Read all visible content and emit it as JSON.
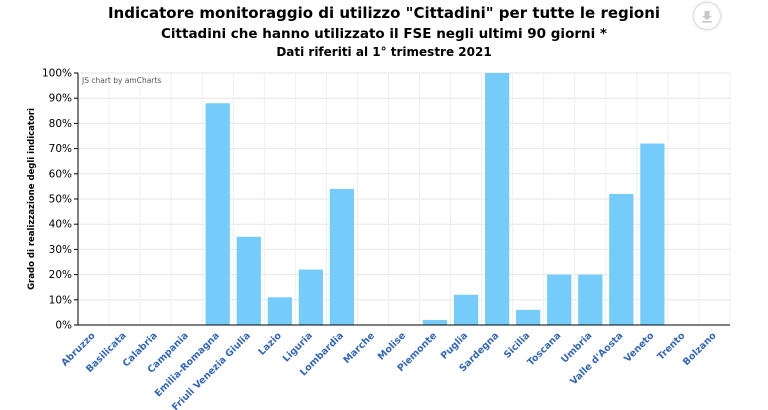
{
  "header": {
    "title": "Indicatore monitoraggio di utilizzo \"Cittadini\" per tutte le regioni",
    "subtitle": "Cittadini che hanno utilizzato il FSE negli ultimi 90 giorni *",
    "note": "Dati riferiti al 1° trimestre 2021"
  },
  "credit": "JS chart by amCharts",
  "download_icon": "download-icon",
  "chart_data": {
    "type": "bar",
    "ylabel": "Grado di realizzazione degli indicatori",
    "ylim": [
      0,
      100
    ],
    "yunit": "%",
    "yticks": [
      "0%",
      "10%",
      "20%",
      "30%",
      "40%",
      "50%",
      "60%",
      "70%",
      "80%",
      "90%",
      "100%"
    ],
    "grid": true,
    "bar_color": "#75CBF9",
    "label_color": "#3366BB",
    "categories": [
      "Abruzzo",
      "Basilicata",
      "Calabria",
      "Campania",
      "Emilia-Romagna",
      "Friuli Venezia Giulia",
      "Lazio",
      "Liguria",
      "Lombardia",
      "Marche",
      "Molise",
      "Piemonte",
      "Puglia",
      "Sardegna",
      "Sicilia",
      "Toscana",
      "Umbria",
      "Valle d'Aosta",
      "Veneto",
      "Trento",
      "Bolzano"
    ],
    "values": [
      0,
      0,
      0,
      0,
      88,
      35,
      11,
      22,
      54,
      0,
      0,
      2,
      12,
      100,
      6,
      20,
      20,
      52,
      72,
      0,
      0
    ]
  }
}
